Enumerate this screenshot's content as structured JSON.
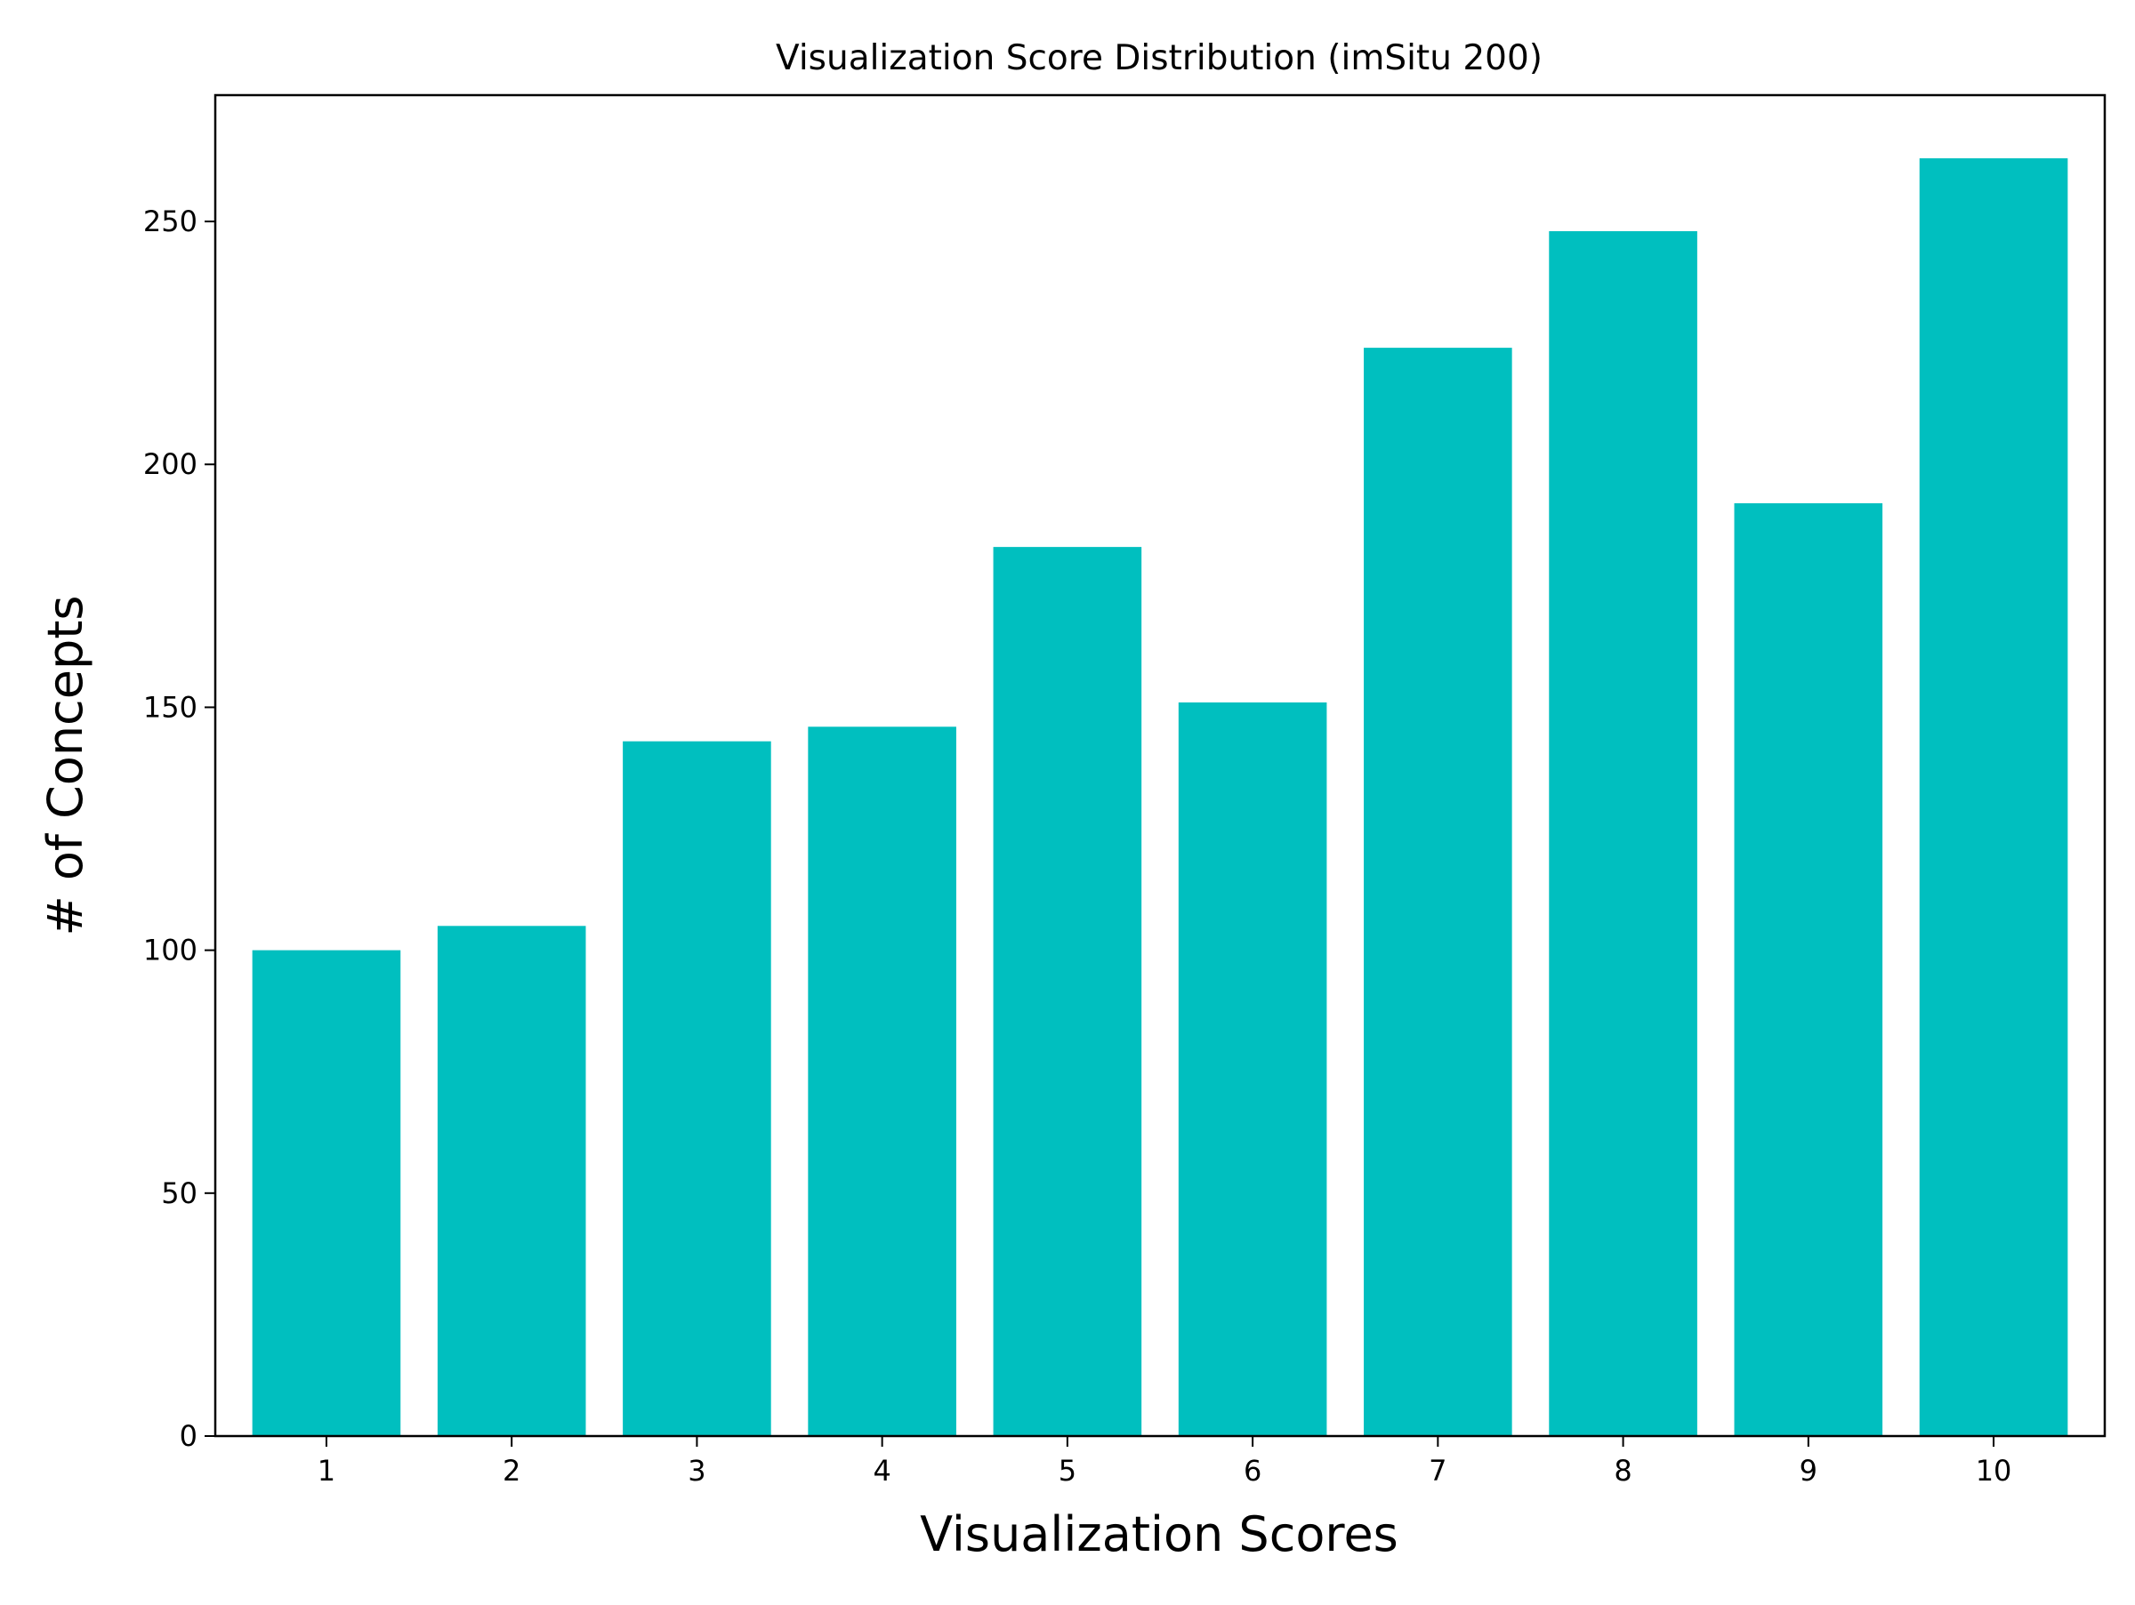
{
  "chart_data": {
    "type": "bar",
    "title": "Visualization Score Distribution (imSitu 200)",
    "xlabel": "Visualization Scores",
    "ylabel": "# of Concepts",
    "categories": [
      "1",
      "2",
      "3",
      "4",
      "5",
      "6",
      "7",
      "8",
      "9",
      "10"
    ],
    "values": [
      100,
      105,
      143,
      146,
      183,
      151,
      224,
      248,
      192,
      263
    ],
    "ylim": [
      0,
      276
    ],
    "yticks": [
      0,
      50,
      100,
      150,
      200,
      250
    ],
    "grid": false,
    "legend": "none",
    "bar_color": "#00BFBF"
  }
}
